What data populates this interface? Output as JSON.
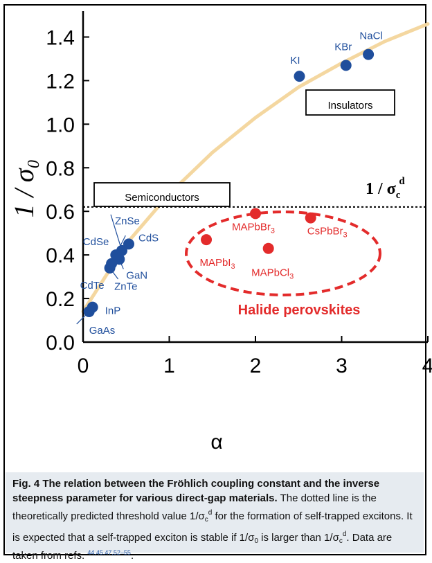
{
  "chart_data": {
    "type": "scatter",
    "xlabel": "α",
    "ylabel": "1 / σ₀",
    "xlim": [
      0,
      4
    ],
    "ylim": [
      0,
      1.5
    ],
    "x_ticks": [
      "0",
      "1",
      "2",
      "3",
      "4"
    ],
    "y_ticks": [
      "0.0",
      "0.2",
      "0.4",
      "0.6",
      "0.8",
      "1.0",
      "1.2",
      "1.4"
    ],
    "threshold": {
      "y": 0.62,
      "label_main": "1 / σ",
      "label_sub": "c",
      "label_sup": "d"
    },
    "series": [
      {
        "name": "semiconductors_insulators",
        "color": "#1f4e9c",
        "points": [
          {
            "label": "GaAs",
            "x": 0.07,
            "y": 0.14
          },
          {
            "label": "InP",
            "x": 0.11,
            "y": 0.16
          },
          {
            "label": "CdTe",
            "x": 0.31,
            "y": 0.34
          },
          {
            "label": "ZnTe",
            "x": 0.33,
            "y": 0.36
          },
          {
            "label": "CdSe",
            "x": 0.38,
            "y": 0.4
          },
          {
            "label": "GaN",
            "x": 0.42,
            "y": 0.38
          },
          {
            "label": "ZnSe",
            "x": 0.45,
            "y": 0.42
          },
          {
            "label": "CdS",
            "x": 0.53,
            "y": 0.45
          },
          {
            "label": "KI",
            "x": 2.51,
            "y": 1.22
          },
          {
            "label": "KBr",
            "x": 3.05,
            "y": 1.27
          },
          {
            "label": "NaCl",
            "x": 3.31,
            "y": 1.32
          }
        ]
      },
      {
        "name": "halide_perovskites",
        "color": "#e32b2b",
        "points": [
          {
            "label": "MAPbI3",
            "x": 1.43,
            "y": 0.47
          },
          {
            "label": "MAPbBr3",
            "x": 2.0,
            "y": 0.59
          },
          {
            "label": "MAPbCl3",
            "x": 2.15,
            "y": 0.43
          },
          {
            "label": "CsPbBr3",
            "x": 2.64,
            "y": 0.57
          }
        ]
      }
    ],
    "trend_curve": {
      "color": "#f4d7a0",
      "x": [
        0.0,
        0.5,
        1.0,
        1.5,
        2.0,
        2.5,
        3.0,
        3.5,
        4.0
      ],
      "y": [
        0.14,
        0.45,
        0.68,
        0.87,
        1.03,
        1.17,
        1.28,
        1.38,
        1.46
      ]
    },
    "group_labels": {
      "insulators": "Insulators",
      "semiconductors": "Semiconductors",
      "halide_perovskites": "Halide perovskites"
    },
    "colors": {
      "blue_points": "#1f4e9c",
      "red_points": "#e32b2b",
      "curve": "#f4d7a0",
      "caption_bg": "#e6ebf0"
    }
  },
  "caption": {
    "head": "Fig. 4 The relation between the Fröhlich coupling constant and the inverse steepness parameter for various direct-gap materials.",
    "body_1": "The dotted line is the theoretically predicted threshold value 1/σ",
    "body_2": " for the formation of self-trapped excitons. It is expected that a self-trapped exciton is stable if 1/σ",
    "body_3": " is larger than 1/σ",
    "body_4": ". Data are taken from refs.",
    "sub_c": "c",
    "sup_d": "d",
    "sub_0": "0",
    "refs": "44,45,47,52–55",
    "end": "."
  }
}
